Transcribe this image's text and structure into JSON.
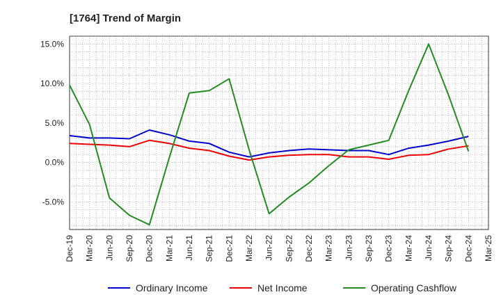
{
  "chart_data": {
    "type": "line",
    "title": "[1764]  Trend of Margin",
    "x": [
      "Dec-19",
      "Mar-20",
      "Jun-20",
      "Sep-20",
      "Dec-20",
      "Mar-21",
      "Jun-21",
      "Sep-21",
      "Dec-21",
      "Mar-22",
      "Jun-22",
      "Sep-22",
      "Dec-22",
      "Mar-23",
      "Jun-23",
      "Sep-23",
      "Dec-23",
      "Mar-24",
      "Jun-24",
      "Sep-24",
      "Dec-24",
      "Mar-25"
    ],
    "ylim": [
      -8.5,
      16
    ],
    "yticks": [
      15,
      10,
      5,
      0,
      -5
    ],
    "ytick_labels": [
      "15.0%",
      "10.0%",
      "5.0%",
      "0.0%",
      "-5.0%"
    ],
    "grid": true,
    "legend_position": "bottom",
    "series": [
      {
        "name": "Ordinary Income",
        "color": "#0000cc",
        "values": [
          3.4,
          3.1,
          3.1,
          3.0,
          4.1,
          3.5,
          2.7,
          2.4,
          1.3,
          0.7,
          1.2,
          1.5,
          1.7,
          1.6,
          1.5,
          1.5,
          1.0,
          1.8,
          2.2,
          2.7,
          3.3,
          null
        ]
      },
      {
        "name": "Net Income",
        "color": "#ee0000",
        "values": [
          2.4,
          2.3,
          2.2,
          2.0,
          2.8,
          2.4,
          1.8,
          1.5,
          0.8,
          0.3,
          0.7,
          0.9,
          1.0,
          1.0,
          0.7,
          0.7,
          0.4,
          0.9,
          1.0,
          1.7,
          2.1,
          null
        ]
      },
      {
        "name": "Operating Cashflow",
        "color": "#228b22",
        "values": [
          9.8,
          4.8,
          -4.5,
          -6.7,
          -7.9,
          0.6,
          8.8,
          9.1,
          10.6,
          1.6,
          -6.5,
          -4.4,
          -2.6,
          -0.4,
          1.6,
          2.2,
          2.8,
          9.1,
          15.0,
          8.5,
          1.4,
          null
        ]
      }
    ]
  }
}
